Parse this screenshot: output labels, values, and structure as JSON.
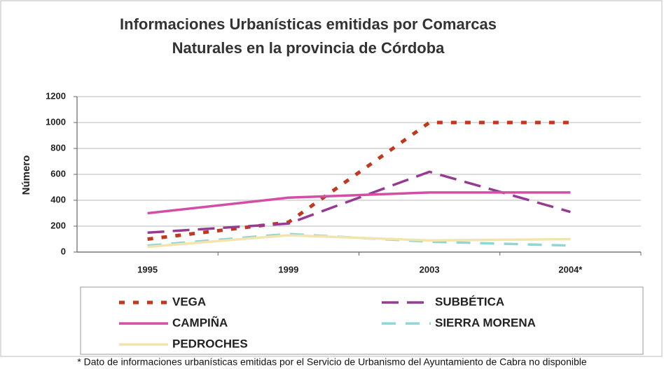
{
  "chart_data": {
    "type": "line",
    "title": [
      "Informaciones Urbanísticas emitidas por Comarcas",
      "Naturales en la provincia de Córdoba"
    ],
    "y_label": "Número",
    "categories": [
      "1995",
      "1999",
      "2003",
      "2004*"
    ],
    "series": [
      {
        "name": "VEGA",
        "color": "#c0391f",
        "values": [
          100,
          230,
          1000,
          1000
        ]
      },
      {
        "name": "SUBBÉTICA",
        "color": "#953c92",
        "values": [
          150,
          220,
          620,
          310
        ]
      },
      {
        "name": "CAMPIÑA",
        "color": "#d34ea6",
        "values": [
          300,
          420,
          460,
          460
        ]
      },
      {
        "name": "SIERRA MORENA",
        "color": "#8fd6d6",
        "values": [
          50,
          140,
          80,
          50
        ]
      },
      {
        "name": "PEDROCHES",
        "color": "#f2e4ad",
        "values": [
          40,
          130,
          90,
          100
        ]
      }
    ],
    "ylim": [
      0,
      1200
    ],
    "yticks": [
      0,
      200,
      400,
      600,
      800,
      1000,
      1200
    ],
    "grid": true,
    "note": "* Dato de informaciones urbanísticas emitidas por el Servicio de Urbanismo del Ayuntamiento de Cabra no disponible"
  }
}
